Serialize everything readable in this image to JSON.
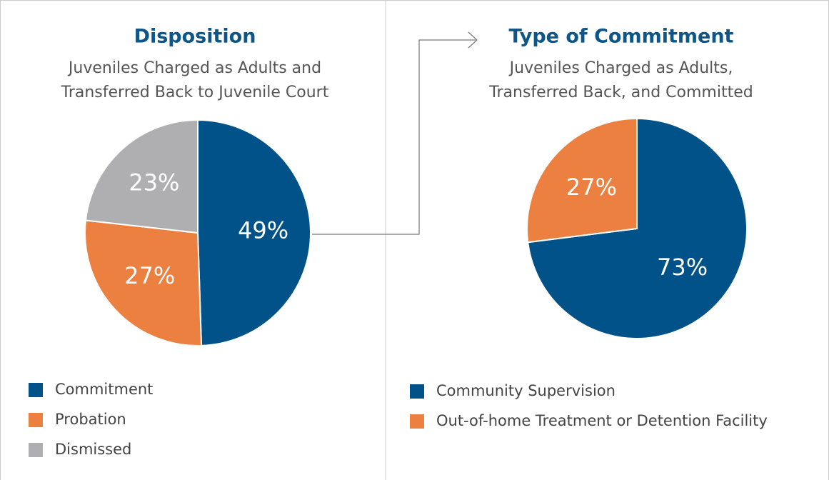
{
  "chart_data": [
    {
      "type": "pie",
      "title": "Disposition",
      "subtitle": [
        "Juveniles Charged as Adults and",
        "Transferred Back to Juvenile Court"
      ],
      "categories": [
        "Commitment",
        "Probation",
        "Dismissed"
      ],
      "values": [
        49,
        27,
        23
      ],
      "value_labels": [
        "49%",
        "27%",
        "23%"
      ],
      "colors": [
        "#005288",
        "#ec8040",
        "#afafb1"
      ]
    },
    {
      "type": "pie",
      "title": "Type of Commitment",
      "subtitle": [
        "Juveniles Charged as Adults,",
        "Transferred Back, and Committed"
      ],
      "categories": [
        "Community Supervision",
        "Out-of-home Treatment or Detention Facility"
      ],
      "values": [
        73,
        27
      ],
      "value_labels": [
        "73%",
        "27%"
      ],
      "colors": [
        "#005288",
        "#ec8040"
      ]
    }
  ]
}
